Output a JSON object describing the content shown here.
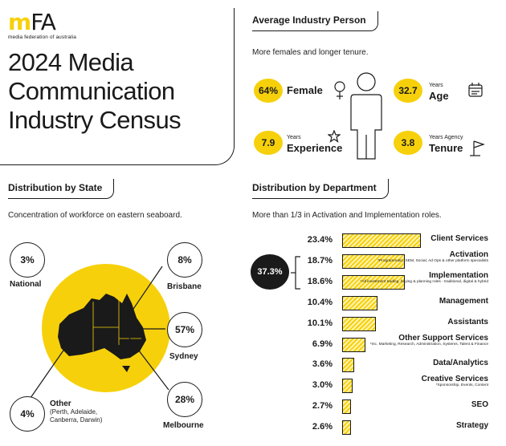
{
  "logo": {
    "mark_m": "m",
    "mark_fa": "FA",
    "tagline": "media federation of australia"
  },
  "title": {
    "line1": "2024 Media",
    "line2": "Communication",
    "line3": "Industry Census"
  },
  "average_person": {
    "header": "Average Industry Person",
    "subtitle": "More females and longer tenure.",
    "stats": [
      {
        "value": "64%",
        "label": "Female",
        "small": "",
        "icon": "female-symbol-icon"
      },
      {
        "value": "32.7",
        "label": "Age",
        "small": "Years",
        "icon": "calendar-icon"
      },
      {
        "value": "7.9",
        "label": "Experience",
        "small": "Years",
        "icon": "star-icon"
      },
      {
        "value": "3.8",
        "label": "Tenure",
        "small": "Years Agency",
        "icon": "flag-icon"
      }
    ],
    "figure_icon": "person-icon"
  },
  "state": {
    "header": "Distribution by State",
    "subtitle": "Concentration of workforce on eastern seaboard.",
    "national": {
      "value": "3%",
      "label": "National"
    },
    "brisbane": {
      "value": "8%",
      "label": "Brisbane"
    },
    "sydney": {
      "value": "57%",
      "label": "Sydney"
    },
    "melbourne": {
      "value": "28%",
      "label": "Melbourne"
    },
    "other": {
      "value": "4%",
      "label": "Other",
      "note1": "(Perth, Adelaide,",
      "note2": "Canberra, Darwin)"
    },
    "map_icon": "australia-map-icon",
    "accent": "#f6d10b"
  },
  "department": {
    "header": "Distribution by Department",
    "subtitle": "More than 1/3 in Activation and Implementation roles.",
    "combined": "37.3%",
    "rows": [
      {
        "pct": "23.4%",
        "value": 23.4,
        "name": "Client Services",
        "note": ""
      },
      {
        "pct": "18.7%",
        "value": 18.7,
        "name": "Activation",
        "note": "*Programmatic, SEM, Social, Ad Ops & other platform specialists"
      },
      {
        "pct": "18.6%",
        "value": 18.6,
        "name": "Implementation",
        "note": "*All investment trading, buying & planning roles - traditional, digital & hybrid"
      },
      {
        "pct": "10.4%",
        "value": 10.4,
        "name": "Management",
        "note": ""
      },
      {
        "pct": "10.1%",
        "value": 10.1,
        "name": "Assistants",
        "note": ""
      },
      {
        "pct": "6.9%",
        "value": 6.9,
        "name": "Other Support Services",
        "note": "*Inc. Marketing, Research, Administration, Systems, Talent & Finance"
      },
      {
        "pct": "3.6%",
        "value": 3.6,
        "name": "Data/Analytics",
        "note": ""
      },
      {
        "pct": "3.0%",
        "value": 3.0,
        "name": "Creative Services",
        "note": "*Sponsorship, Events, Content"
      },
      {
        "pct": "2.7%",
        "value": 2.7,
        "name": "SEO",
        "note": ""
      },
      {
        "pct": "2.6%",
        "value": 2.6,
        "name": "Strategy",
        "note": ""
      }
    ]
  }
}
